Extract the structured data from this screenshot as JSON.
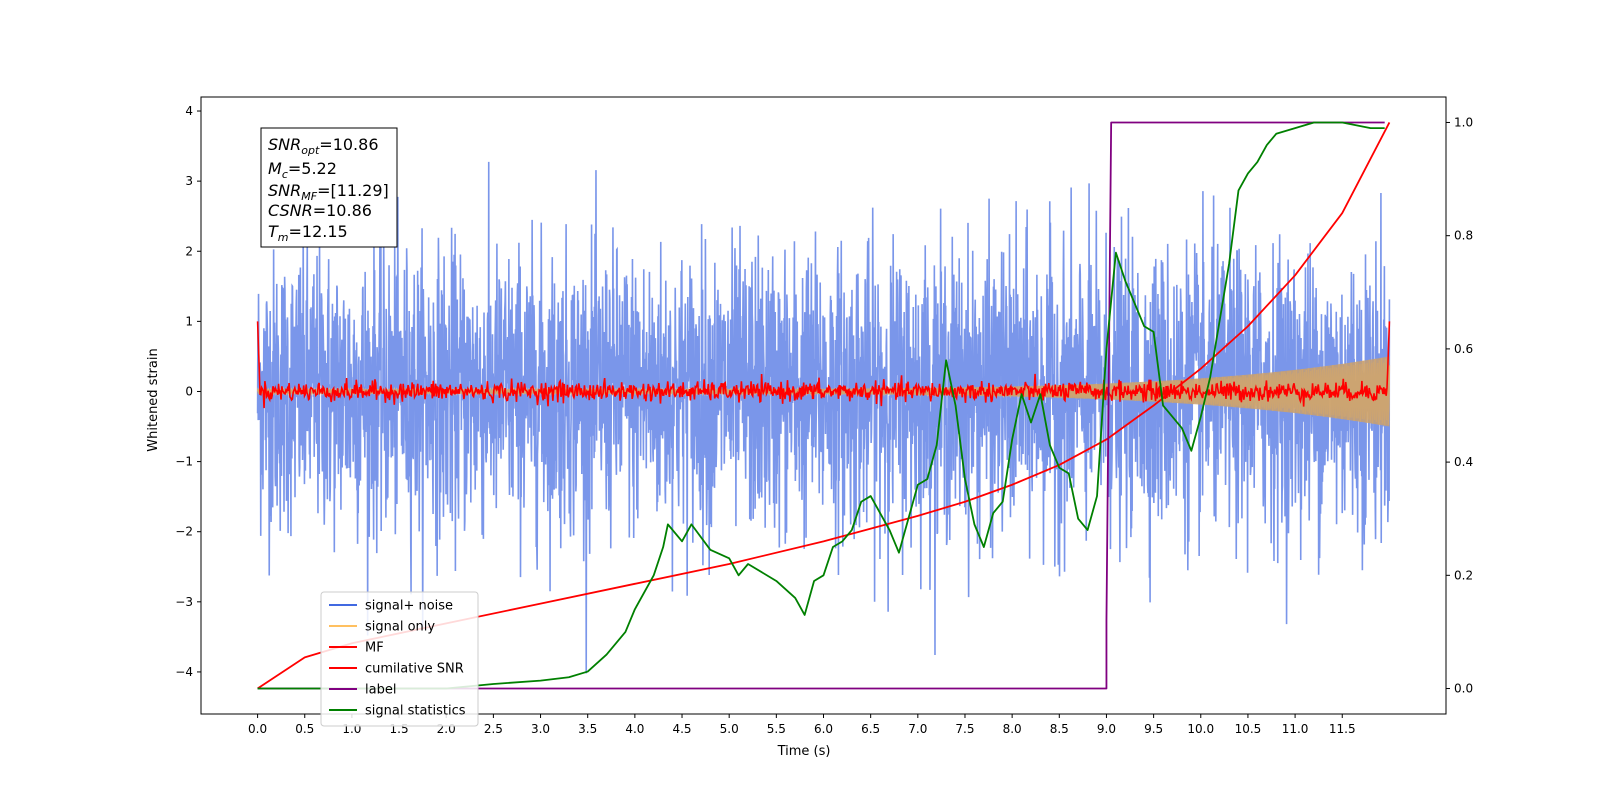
{
  "chart_data": {
    "type": "line",
    "title": "",
    "xlabel": "Time (s)",
    "ylabel": "Whitened strain",
    "xlim": [
      -0.6,
      12.6
    ],
    "ylim": [
      -4.6,
      4.2
    ],
    "y2lim": [
      -0.045,
      1.045
    ],
    "grid": false,
    "legend_position": "lower-left",
    "x_ticks": [
      "0.0",
      "0.5",
      "1.0",
      "1.5",
      "2.0",
      "2.5",
      "3.0",
      "3.5",
      "4.0",
      "4.5",
      "5.0",
      "5.5",
      "6.0",
      "6.5",
      "7.0",
      "7.5",
      "8.0",
      "8.5",
      "9.0",
      "9.5",
      "10.0",
      "10.5",
      "11.0",
      "11.5"
    ],
    "y_ticks": [
      "4",
      "3",
      "2",
      "1",
      "0",
      "−1",
      "−2",
      "−3",
      "−4"
    ],
    "y2_ticks": [
      "1.0",
      "0.8",
      "0.6",
      "0.4",
      "0.2",
      "0.0"
    ],
    "annotation": {
      "snr_opt": {
        "base": "SNR",
        "sub": "opt",
        "value": "=10.86"
      },
      "mc": {
        "base": "M",
        "sub": "c",
        "value": "=5.22"
      },
      "snr_mf": {
        "base": "SNR",
        "sub": "MF",
        "value": "=[11.29]"
      },
      "csnr": {
        "base": "CSNR",
        "sub": "",
        "value": "=10.86"
      },
      "tm": {
        "base": "T",
        "sub": "m",
        "value": "=12.15"
      }
    },
    "series": [
      {
        "name": "signal+ noise",
        "color": "#4169e1",
        "axis": "left",
        "style": "noise",
        "time_range": [
          0,
          12
        ],
        "noise_sd": 1.0
      },
      {
        "name": "signal only",
        "color": "#ffc060",
        "axis": "left",
        "style": "chirp_envelope",
        "time_range": [
          0,
          12
        ],
        "amplitude_start": 0.03,
        "amplitude_end": 0.5
      },
      {
        "name": "MF",
        "color": "#ff0000",
        "axis": "left",
        "style": "jitter",
        "time_range": [
          0,
          12
        ],
        "edge_values": [
          1.0,
          1.0
        ],
        "noise_sd": 0.07
      },
      {
        "name": "cumilative SNR",
        "color": "#ff0000",
        "axis": "right",
        "x": [
          0.0,
          0.5,
          1.0,
          2.0,
          3.0,
          4.0,
          5.0,
          6.0,
          7.0,
          7.5,
          8.0,
          8.5,
          9.0,
          9.5,
          10.0,
          10.5,
          11.0,
          11.5,
          12.0
        ],
        "y": [
          0.0,
          0.055,
          0.08,
          0.115,
          0.15,
          0.185,
          0.22,
          0.26,
          0.305,
          0.33,
          0.36,
          0.395,
          0.44,
          0.5,
          0.565,
          0.64,
          0.73,
          0.84,
          1.0
        ]
      },
      {
        "name": "label",
        "color": "#800080",
        "axis": "right",
        "x": [
          0.0,
          9.0,
          9.0,
          9.05,
          11.95
        ],
        "y": [
          0.0,
          0.0,
          0.12,
          1.0,
          1.0
        ]
      },
      {
        "name": "signal statistics",
        "color": "#008000",
        "axis": "right",
        "x": [
          0.0,
          2.0,
          2.5,
          3.0,
          3.3,
          3.5,
          3.7,
          3.9,
          4.0,
          4.2,
          4.3,
          4.35,
          4.5,
          4.6,
          4.8,
          5.0,
          5.1,
          5.2,
          5.5,
          5.7,
          5.8,
          5.9,
          6.0,
          6.1,
          6.2,
          6.3,
          6.4,
          6.5,
          6.6,
          6.7,
          6.8,
          7.0,
          7.1,
          7.2,
          7.3,
          7.4,
          7.5,
          7.6,
          7.7,
          7.8,
          7.9,
          8.0,
          8.1,
          8.2,
          8.3,
          8.4,
          8.5,
          8.6,
          8.7,
          8.8,
          8.9,
          9.0,
          9.1,
          9.2,
          9.3,
          9.4,
          9.5,
          9.6,
          9.7,
          9.8,
          9.9,
          10.0,
          10.1,
          10.2,
          10.3,
          10.4,
          10.5,
          10.6,
          10.7,
          10.8,
          11.0,
          11.2,
          11.5,
          11.8,
          11.95
        ],
        "y": [
          0.0,
          0.0,
          0.008,
          0.014,
          0.02,
          0.03,
          0.06,
          0.1,
          0.14,
          0.2,
          0.25,
          0.29,
          0.26,
          0.29,
          0.245,
          0.23,
          0.2,
          0.22,
          0.19,
          0.16,
          0.13,
          0.19,
          0.2,
          0.25,
          0.26,
          0.28,
          0.33,
          0.34,
          0.31,
          0.28,
          0.24,
          0.36,
          0.37,
          0.43,
          0.58,
          0.5,
          0.37,
          0.29,
          0.25,
          0.31,
          0.33,
          0.44,
          0.52,
          0.47,
          0.52,
          0.43,
          0.39,
          0.38,
          0.3,
          0.28,
          0.34,
          0.6,
          0.77,
          0.72,
          0.68,
          0.64,
          0.63,
          0.5,
          0.48,
          0.46,
          0.42,
          0.48,
          0.55,
          0.65,
          0.75,
          0.88,
          0.91,
          0.93,
          0.96,
          0.98,
          0.99,
          1.0,
          1.0,
          0.99,
          0.99
        ]
      }
    ]
  }
}
